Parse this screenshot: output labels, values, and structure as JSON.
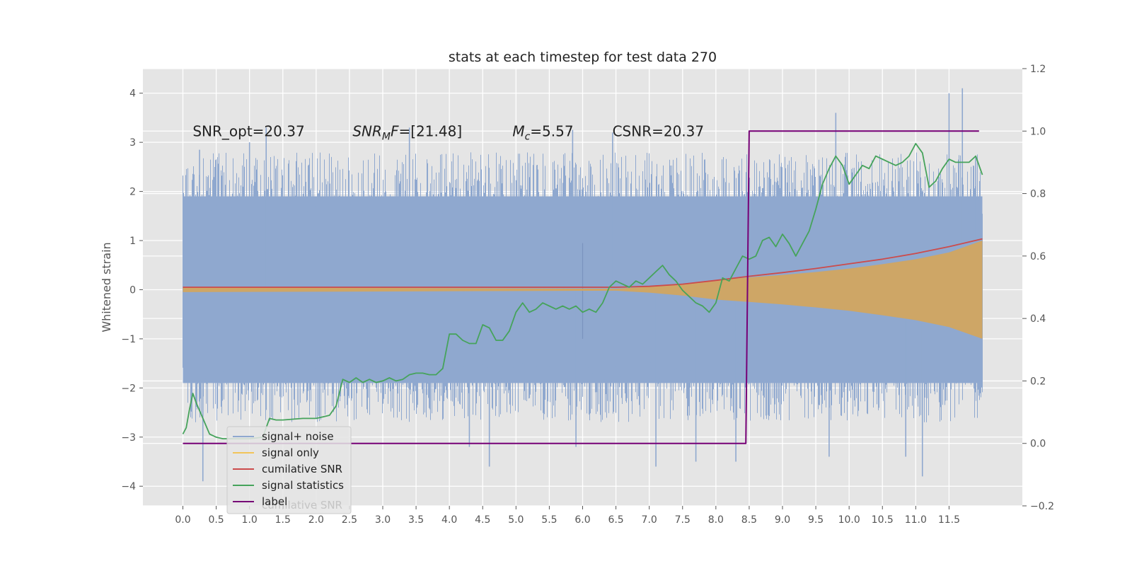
{
  "chart_data": {
    "type": "line",
    "title": "stats at each timestep for test data 270",
    "ylabel": "Whitened strain",
    "xlabel": "",
    "xlim": [
      -0.6,
      12.6
    ],
    "ylim": [
      -4.4,
      4.5
    ],
    "y2lim": [
      -0.2,
      1.2
    ],
    "grid": true,
    "background": "#e5e5e5",
    "x_ticks": [
      0.0,
      0.5,
      1.0,
      1.5,
      2.0,
      2.5,
      3.0,
      3.5,
      4.0,
      4.5,
      5.0,
      5.5,
      6.0,
      6.5,
      7.0,
      7.5,
      8.0,
      8.5,
      9.0,
      9.5,
      10.0,
      10.5,
      11.0,
      11.5
    ],
    "x_tick_labels": [
      "0.0",
      "0.5",
      "1.0",
      "1.5",
      "2.0",
      "2.5",
      "3.0",
      "3.5",
      "4.0",
      "4.5",
      "5.0",
      "5.5",
      "6.0",
      "6.5",
      "7.0",
      "7.5",
      "8.0",
      "8.5",
      "9.0",
      "9.5",
      "10.0",
      "10.5",
      "11.0",
      "11.5"
    ],
    "y_ticks": [
      -4,
      -3,
      -2,
      -1,
      0,
      1,
      2,
      3,
      4
    ],
    "y_tick_labels": [
      "−4",
      "−3",
      "−2",
      "−1",
      "0",
      "1",
      "2",
      "3",
      "4"
    ],
    "y2_ticks": [
      -0.2,
      0.0,
      0.2,
      0.4,
      0.6,
      0.8,
      1.0,
      1.2
    ],
    "y2_tick_labels": [
      "−0.2",
      "0.0",
      "0.2",
      "0.4",
      "0.6",
      "0.8",
      "1.0",
      "1.2"
    ],
    "annotations": [
      {
        "text": "SNR_opt=20.37",
        "x": 0.2,
        "y": 3.2
      },
      {
        "text": "SNRMF=[21.48]",
        "x": 2.6,
        "y": 3.2
      },
      {
        "text": "Mc=5.57",
        "x": 5.0,
        "y": 3.2
      },
      {
        "text": "CSNR=20.37",
        "x": 6.5,
        "y": 3.2
      }
    ],
    "legend": {
      "placement": "lower-left",
      "entries": [
        {
          "label": "signal+ noise",
          "color": "#8fa8cf"
        },
        {
          "label": "signal only",
          "color": "#f2c45a"
        },
        {
          "label": "cumilative SNR",
          "color": "#cc4b4b"
        },
        {
          "label": "signal statistics",
          "color": "#46a35b"
        },
        {
          "label": "label",
          "color": "#760076"
        }
      ],
      "hidden_entry": "cumilative SNR"
    },
    "series": [
      {
        "name": "signal+ noise",
        "style": "noise-band",
        "color": "#8fa8cf",
        "x_range": [
          0.0,
          12.0
        ],
        "core": [
          -1.9,
          1.9
        ],
        "typical_extent": [
          -2.7,
          2.8
        ],
        "peaks": [
          {
            "x": 0.25,
            "y": 2.85
          },
          {
            "x": 0.3,
            "y": -3.9
          },
          {
            "x": 1.25,
            "y": 3.3
          },
          {
            "x": 1.0,
            "y": 3.0
          },
          {
            "x": 3.4,
            "y": 3.3
          },
          {
            "x": 4.3,
            "y": -3.2
          },
          {
            "x": 4.6,
            "y": -3.6
          },
          {
            "x": 5.85,
            "y": 3.25
          },
          {
            "x": 5.9,
            "y": -3.2
          },
          {
            "x": 6.45,
            "y": 3.2
          },
          {
            "x": 7.1,
            "y": -3.6
          },
          {
            "x": 7.7,
            "y": -3.5
          },
          {
            "x": 8.3,
            "y": -3.5
          },
          {
            "x": 9.8,
            "y": 3.6
          },
          {
            "x": 9.7,
            "y": -3.4
          },
          {
            "x": 10.85,
            "y": -3.4
          },
          {
            "x": 11.1,
            "y": -3.8
          },
          {
            "x": 11.5,
            "y": 4.0
          },
          {
            "x": 11.7,
            "y": 4.1
          },
          {
            "x": 11.9,
            "y": 2.7
          }
        ]
      },
      {
        "name": "signal only",
        "style": "envelope",
        "color": "#d5a55a",
        "x": [
          0.0,
          6.5,
          7.0,
          7.5,
          8.0,
          8.5,
          9.0,
          9.5,
          10.0,
          10.5,
          11.0,
          11.5,
          12.0
        ],
        "amplitude": [
          0.05,
          0.02,
          0.06,
          0.12,
          0.2,
          0.25,
          0.3,
          0.36,
          0.43,
          0.52,
          0.62,
          0.76,
          1.0
        ]
      },
      {
        "name": "cumilative SNR",
        "axis": "y2",
        "color": "#cc4b4b",
        "x": [
          0.0,
          6.5,
          7.0,
          7.5,
          8.0,
          8.5,
          9.0,
          9.5,
          10.0,
          10.5,
          11.0,
          11.5,
          12.0
        ],
        "y": [
          0.5,
          0.5,
          0.503,
          0.51,
          0.522,
          0.535,
          0.547,
          0.56,
          0.575,
          0.59,
          0.608,
          0.63,
          0.655
        ]
      },
      {
        "name": "signal statistics",
        "axis": "y2",
        "color": "#46a35b",
        "x": [
          0.0,
          0.05,
          0.1,
          0.15,
          0.2,
          0.3,
          0.4,
          0.5,
          0.6,
          0.8,
          1.0,
          1.2,
          1.3,
          1.4,
          1.5,
          1.8,
          2.0,
          2.1,
          2.2,
          2.3,
          2.4,
          2.5,
          2.6,
          2.7,
          2.8,
          2.9,
          3.0,
          3.1,
          3.2,
          3.3,
          3.4,
          3.5,
          3.6,
          3.7,
          3.8,
          3.9,
          4.0,
          4.1,
          4.2,
          4.3,
          4.4,
          4.5,
          4.6,
          4.7,
          4.8,
          4.9,
          5.0,
          5.1,
          5.2,
          5.3,
          5.4,
          5.5,
          5.6,
          5.7,
          5.8,
          5.9,
          6.0,
          6.1,
          6.2,
          6.3,
          6.4,
          6.5,
          6.6,
          6.7,
          6.8,
          6.9,
          7.0,
          7.1,
          7.2,
          7.3,
          7.4,
          7.5,
          7.6,
          7.7,
          7.8,
          7.9,
          8.0,
          8.1,
          8.2,
          8.3,
          8.4,
          8.5,
          8.6,
          8.7,
          8.8,
          8.9,
          9.0,
          9.1,
          9.2,
          9.3,
          9.4,
          9.5,
          9.6,
          9.7,
          9.8,
          9.9,
          10.0,
          10.1,
          10.2,
          10.3,
          10.4,
          10.5,
          10.6,
          10.7,
          10.8,
          10.9,
          11.0,
          11.1,
          11.2,
          11.3,
          11.4,
          11.5,
          11.6,
          11.7,
          11.8,
          11.9,
          12.0
        ],
        "y": [
          0.03,
          0.05,
          0.11,
          0.16,
          0.13,
          0.08,
          0.03,
          0.02,
          0.015,
          0.015,
          0.015,
          0.02,
          0.08,
          0.075,
          0.075,
          0.08,
          0.08,
          0.085,
          0.09,
          0.12,
          0.205,
          0.195,
          0.21,
          0.195,
          0.205,
          0.195,
          0.2,
          0.21,
          0.2,
          0.205,
          0.22,
          0.225,
          0.225,
          0.22,
          0.22,
          0.24,
          0.35,
          0.35,
          0.33,
          0.32,
          0.32,
          0.38,
          0.37,
          0.33,
          0.33,
          0.36,
          0.42,
          0.45,
          0.42,
          0.43,
          0.45,
          0.44,
          0.43,
          0.44,
          0.43,
          0.44,
          0.42,
          0.43,
          0.42,
          0.45,
          0.5,
          0.52,
          0.51,
          0.5,
          0.52,
          0.51,
          0.53,
          0.55,
          0.57,
          0.54,
          0.52,
          0.49,
          0.47,
          0.45,
          0.44,
          0.42,
          0.45,
          0.53,
          0.52,
          0.56,
          0.6,
          0.59,
          0.6,
          0.65,
          0.66,
          0.63,
          0.67,
          0.64,
          0.6,
          0.64,
          0.68,
          0.75,
          0.83,
          0.88,
          0.92,
          0.89,
          0.83,
          0.86,
          0.89,
          0.88,
          0.92,
          0.91,
          0.9,
          0.89,
          0.9,
          0.92,
          0.96,
          0.93,
          0.82,
          0.84,
          0.88,
          0.91,
          0.9,
          0.9,
          0.9,
          0.92,
          0.86
        ]
      },
      {
        "name": "label",
        "axis": "y2",
        "color": "#760076",
        "x": [
          0.0,
          8.45,
          8.5,
          11.95
        ],
        "y": [
          0.0,
          0.0,
          1.0,
          1.0
        ]
      }
    ]
  }
}
